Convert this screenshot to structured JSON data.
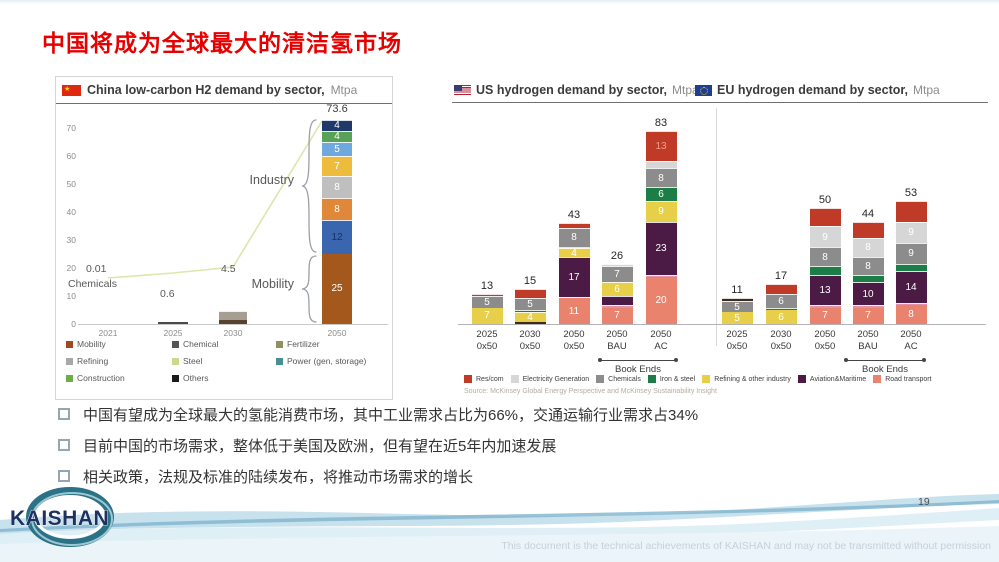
{
  "page": {
    "title": "中国将成为全球最大的清洁氢市场",
    "page_number": "19",
    "footer_note": "This document is the technical achievements of KAISHAN and may not be transmitted without permission",
    "logo_text": "KAISHAN"
  },
  "bullets": [
    "中国有望成为全球最大的氢能消费市场，其中工业需求占比为66%，交通运输行业需求占34%",
    "目前中国的市场需求，整体低于美国及欧洲，但有望在近5年内加速发展",
    "相关政策，法规及标准的陆续发布，将推动市场需求的增长"
  ],
  "colors": {
    "title_red": "#e60000",
    "sector": {
      "res_com": "#c03a28",
      "elec": "#d6d6d6",
      "chem": "#8c8c8c",
      "iron": "#1d7d46",
      "refining": "#e7cf4a",
      "aviation": "#4b1b45",
      "road": "#e9836e",
      "pink": "#e291a8",
      "dark": "#3f2a20"
    }
  },
  "chart_data": [
    {
      "id": "china",
      "type": "bar",
      "icon": "china-flag",
      "title": "China low-carbon H2 demand by sector,",
      "unit": "Mtpa",
      "ylim": [
        0,
        80
      ],
      "yticks": [
        0,
        10,
        20,
        30,
        40,
        50,
        60,
        70,
        80
      ],
      "categories": [
        "2021",
        "2025",
        "2030",
        "2050"
      ],
      "totals": [
        0.01,
        0.6,
        4.5,
        73.6
      ],
      "annotations": {
        "v2021": "0.01",
        "v2021_sub": "Chemicals",
        "v2025": "0.6",
        "v2030": "4.5",
        "v2050": "73.6",
        "industry": "Industry",
        "mobility": "Mobility"
      },
      "stacks": {
        "2025": [
          {
            "value": 0.6,
            "color": "#4a4a4a"
          }
        ],
        "2030": [
          {
            "value": 1.5,
            "color": "#57422e"
          },
          {
            "value": 3,
            "color": "#a79e92"
          }
        ],
        "2050": [
          {
            "value": 25,
            "label": "25",
            "color": "#a4581c"
          },
          {
            "value": 12,
            "label": "12",
            "color": "#3a66b0",
            "label_color": "#16305e"
          },
          {
            "value": 8,
            "label": "8",
            "color": "#e0883a"
          },
          {
            "value": 8,
            "label": "8",
            "color": "#bfbfbf"
          },
          {
            "value": 7,
            "label": "7",
            "color": "#eebc3c"
          },
          {
            "value": 5,
            "label": "5",
            "color": "#6fa8dc"
          },
          {
            "value": 4,
            "label": "4",
            "color": "#57a257"
          },
          {
            "value": 4,
            "label": "4",
            "color": "#1f3a68"
          }
        ]
      },
      "legend": [
        {
          "label": "Mobility",
          "color": "#9c4a1e"
        },
        {
          "label": "Chemical",
          "color": "#555555"
        },
        {
          "label": "Fertilizer",
          "color": "#8f9162"
        },
        {
          "label": "Refining",
          "color": "#a8a8a8"
        },
        {
          "label": "Steel",
          "color": "#cdd98a"
        },
        {
          "label": "Power (gen, storage)",
          "color": "#4a8f8f"
        },
        {
          "label": "Construction",
          "color": "#70ad47"
        },
        {
          "label": "Others",
          "color": "#1a1a1a"
        }
      ]
    },
    {
      "id": "us",
      "type": "stacked-bar",
      "icon": "us-flag",
      "title": "US hydrogen demand by sector,",
      "unit": "Mtpa",
      "book_ends": "Book Ends",
      "bars": [
        {
          "cat": [
            "2025",
            "0x50"
          ],
          "total": 13,
          "segments": [
            {
              "v": 7,
              "c": "refining",
              "t": "7"
            },
            {
              "v": 5,
              "c": "chem",
              "t": "5"
            },
            {
              "v": 1,
              "c": "res_com"
            }
          ]
        },
        {
          "cat": [
            "2030",
            "0x50"
          ],
          "total": 15,
          "segments": [
            {
              "v": 1,
              "c": "dark"
            },
            {
              "v": 4,
              "c": "refining",
              "t": "4"
            },
            {
              "v": 1,
              "c": "iron"
            },
            {
              "v": 5,
              "c": "chem",
              "t": "5"
            },
            {
              "v": 4,
              "c": "res_com"
            }
          ]
        },
        {
          "cat": [
            "2050",
            "0x50"
          ],
          "total": 43,
          "segments": [
            {
              "v": 11,
              "c": "road",
              "t": "11"
            },
            {
              "v": 0.5,
              "c": "pink"
            },
            {
              "v": 17,
              "c": "aviation",
              "t": "17"
            },
            {
              "v": 4,
              "c": "refining",
              "t": "4"
            },
            {
              "v": 0.5,
              "c": "iron"
            },
            {
              "v": 8,
              "c": "chem",
              "t": "8"
            },
            {
              "v": 2,
              "c": "res_com"
            }
          ]
        },
        {
          "cat": [
            "2050",
            "BAU"
          ],
          "total": 26,
          "segments": [
            {
              "v": 7,
              "c": "road",
              "t": "7"
            },
            {
              "v": 1,
              "c": "pink"
            },
            {
              "v": 4,
              "c": "aviation"
            },
            {
              "v": 6,
              "c": "refining",
              "t": "6"
            },
            {
              "v": 7,
              "c": "chem",
              "t": "7"
            },
            {
              "v": 1,
              "c": "elec"
            }
          ]
        },
        {
          "cat": [
            "2050",
            "AC"
          ],
          "total": 83,
          "segments": [
            {
              "v": 20,
              "c": "road",
              "t": "20"
            },
            {
              "v": 1,
              "c": "pink"
            },
            {
              "v": 23,
              "c": "aviation",
              "t": "23"
            },
            {
              "v": 9,
              "c": "refining",
              "t": "9"
            },
            {
              "v": 6,
              "c": "iron",
              "t": "6"
            },
            {
              "v": 8,
              "c": "chem",
              "t": "8"
            },
            {
              "v": 3,
              "c": "elec"
            },
            {
              "v": 13,
              "c": "res_com",
              "t": "13",
              "tc": "#ef9f8b"
            }
          ]
        }
      ]
    },
    {
      "id": "eu",
      "type": "stacked-bar",
      "icon": "eu-flag",
      "title": "EU hydrogen demand by sector,",
      "unit": "Mtpa",
      "book_ends": "Book Ends",
      "bars": [
        {
          "cat": [
            "2025",
            "0x50"
          ],
          "total": 11,
          "segments": [
            {
              "v": 5,
              "c": "refining",
              "t": "5"
            },
            {
              "v": 5,
              "c": "chem",
              "t": "5"
            },
            {
              "v": 1,
              "c": "dark"
            }
          ]
        },
        {
          "cat": [
            "2030",
            "0x50"
          ],
          "total": 17,
          "segments": [
            {
              "v": 6,
              "c": "refining",
              "t": "6"
            },
            {
              "v": 1,
              "c": "iron"
            },
            {
              "v": 6,
              "c": "chem",
              "t": "6"
            },
            {
              "v": 4,
              "c": "res_com"
            }
          ]
        },
        {
          "cat": [
            "2050",
            "0x50"
          ],
          "total": 50,
          "segments": [
            {
              "v": 7,
              "c": "road",
              "t": "7"
            },
            {
              "v": 1,
              "c": "pink"
            },
            {
              "v": 13,
              "c": "aviation",
              "t": "13"
            },
            {
              "v": 4,
              "c": "iron"
            },
            {
              "v": 8,
              "c": "chem",
              "t": "8"
            },
            {
              "v": 9,
              "c": "elec",
              "t": "9"
            },
            {
              "v": 8,
              "c": "res_com"
            }
          ]
        },
        {
          "cat": [
            "2050",
            "BAU"
          ],
          "total": 44,
          "segments": [
            {
              "v": 7,
              "c": "road",
              "t": "7"
            },
            {
              "v": 1,
              "c": "pink"
            },
            {
              "v": 10,
              "c": "aviation",
              "t": "10"
            },
            {
              "v": 3,
              "c": "iron"
            },
            {
              "v": 8,
              "c": "chem",
              "t": "8"
            },
            {
              "v": 8,
              "c": "elec",
              "t": "8"
            },
            {
              "v": 7,
              "c": "res_com"
            }
          ]
        },
        {
          "cat": [
            "2050",
            "AC"
          ],
          "total": 53,
          "segments": [
            {
              "v": 8,
              "c": "road",
              "t": "8"
            },
            {
              "v": 1,
              "c": "pink"
            },
            {
              "v": 14,
              "c": "aviation",
              "t": "14"
            },
            {
              "v": 3,
              "c": "iron"
            },
            {
              "v": 9,
              "c": "chem",
              "t": "9"
            },
            {
              "v": 9,
              "c": "elec",
              "t": "9"
            },
            {
              "v": 9,
              "c": "res_com"
            }
          ]
        }
      ]
    }
  ],
  "sector_legend": [
    {
      "label": "Res/com",
      "key": "res_com"
    },
    {
      "label": "Electricity Generation",
      "key": "elec"
    },
    {
      "label": "Chemicals",
      "key": "chem"
    },
    {
      "label": "Iron & steel",
      "key": "iron"
    },
    {
      "label": "Refining & other industry",
      "key": "refining"
    },
    {
      "label": "Aviation&Maritime",
      "key": "aviation"
    },
    {
      "label": "Road transport",
      "key": "road"
    }
  ],
  "source": "Source: McKinsey Global Energy Perspective and McKinsey Sustainability Insight"
}
